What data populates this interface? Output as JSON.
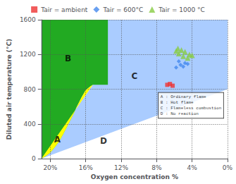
{
  "chart_data": {
    "type": "scatter",
    "xlabel": "Oxygen concentration %",
    "ylabel": "Diluted air temperature (°C)",
    "xlim": [
      21,
      0
    ],
    "ylim": [
      0,
      1600
    ],
    "xticks": [
      {
        "value": 20,
        "label": "20%"
      },
      {
        "value": 16,
        "label": "16%"
      },
      {
        "value": 12,
        "label": "12%"
      },
      {
        "value": 8,
        "label": "8%"
      },
      {
        "value": 4,
        "label": "4%"
      },
      {
        "value": 0,
        "label": "0%"
      }
    ],
    "yticks": [
      0,
      400,
      800,
      1200,
      1600
    ],
    "grid": true,
    "legend": "top",
    "series": [
      {
        "name": "Tair = ambient",
        "color": "#ee3333",
        "marker": "square",
        "values": [
          [
            6.2,
            840
          ],
          [
            6.5,
            860
          ],
          [
            6.8,
            850
          ]
        ]
      },
      {
        "name": "Tair = 600°C",
        "color": "#4488ee",
        "marker": "diamond",
        "values": [
          [
            5.8,
            1050
          ],
          [
            5.3,
            1080
          ],
          [
            4.8,
            1100
          ],
          [
            5.5,
            1120
          ],
          [
            5.0,
            1060
          ],
          [
            4.5,
            1090
          ]
        ]
      },
      {
        "name": "Tair = 1000 °C",
        "color": "#88cc44",
        "marker": "triangle",
        "values": [
          [
            5.2,
            1250
          ],
          [
            5.6,
            1270
          ],
          [
            4.8,
            1230
          ],
          [
            4.3,
            1200
          ],
          [
            5.0,
            1180
          ],
          [
            5.5,
            1210
          ],
          [
            4.5,
            1160
          ],
          [
            5.8,
            1240
          ],
          [
            4.0,
            1190
          ]
        ]
      }
    ],
    "regions": [
      {
        "color": "#aaccff",
        "x": [
          21,
          0,
          0,
          21
        ],
        "y": [
          0,
          0,
          1600,
          1600
        ]
      },
      {
        "color": "#ffffff",
        "x": [
          15.2,
          15.5,
          16.0,
          16.5,
          17.0,
          17.5,
          18.0,
          18.5,
          19.0,
          19.5,
          20.0,
          20.5,
          21.0,
          0,
          0,
          21
        ],
        "y": [
          850,
          830,
          790,
          700,
          600,
          490,
          390,
          290,
          200,
          130,
          70,
          30,
          0,
          800,
          0,
          0
        ]
      },
      {
        "color": "#22aa22",
        "x": [
          21,
          21.0,
          20.5,
          20.0,
          19.5,
          19.0,
          18.5,
          18.0,
          17.5,
          17.0,
          16.5,
          16.0,
          15.5,
          15.2,
          15.2,
          13.5,
          13.5,
          21
        ],
        "y": [
          0,
          0,
          30,
          70,
          130,
          200,
          290,
          390,
          490,
          600,
          700,
          790,
          830,
          850,
          850,
          850,
          1600,
          1600
        ]
      },
      {
        "color": "#ffff00",
        "x": [
          21,
          21.0,
          20.5,
          20.0,
          19.5,
          19.0,
          18.5,
          18.0,
          17.5,
          17.0,
          16.5,
          16.0,
          15.5,
          15.2,
          21
        ],
        "y": [
          0,
          0,
          30,
          70,
          130,
          200,
          290,
          390,
          490,
          600,
          700,
          790,
          830,
          850,
          0
        ]
      }
    ],
    "zone_labels": [
      {
        "text": "A",
        "x": 19.2,
        "y": 220
      },
      {
        "text": "B",
        "x": 18.0,
        "y": 1150
      },
      {
        "text": "C",
        "x": 10.5,
        "y": 950
      },
      {
        "text": "D",
        "x": 14.0,
        "y": 200
      }
    ],
    "text_box": {
      "text": "A : Ordinary flame\nB : Hot flame\nC : Flameless combustion\nD : No reaction",
      "x": 7.8,
      "y": 760
    }
  }
}
